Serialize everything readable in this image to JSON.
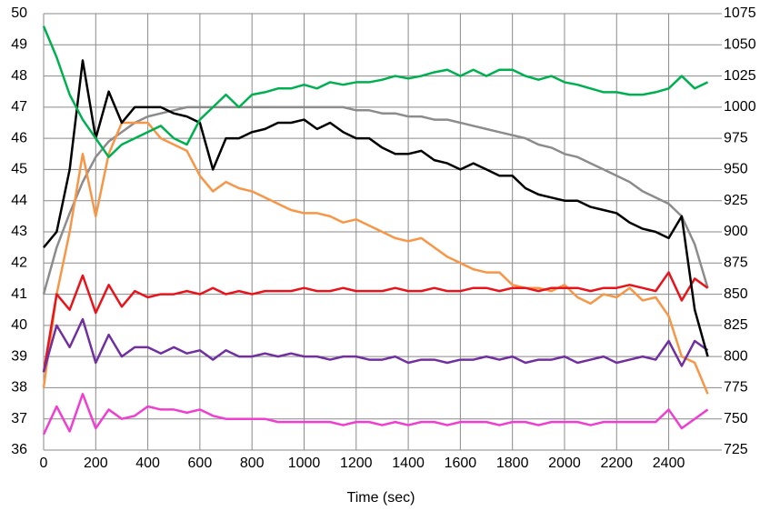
{
  "chart_data": {
    "type": "line",
    "x_label": "Time (sec)",
    "x": [
      0,
      50,
      100,
      150,
      200,
      250,
      300,
      350,
      400,
      450,
      500,
      550,
      600,
      650,
      700,
      750,
      800,
      850,
      900,
      950,
      1000,
      1050,
      1100,
      1150,
      1200,
      1250,
      1300,
      1350,
      1400,
      1450,
      1500,
      1550,
      1600,
      1650,
      1700,
      1750,
      1800,
      1850,
      1900,
      1950,
      2000,
      2050,
      2100,
      2150,
      2200,
      2250,
      2300,
      2350,
      2400,
      2450,
      2500,
      2550
    ],
    "xlim": [
      0,
      2590
    ],
    "xticks": [
      0,
      200,
      400,
      600,
      800,
      1000,
      1200,
      1400,
      1600,
      1800,
      2000,
      2200,
      2400
    ],
    "ylim": [
      36,
      50
    ],
    "yticks": [
      36,
      37,
      38,
      39,
      40,
      41,
      42,
      43,
      44,
      45,
      46,
      47,
      48,
      49,
      50
    ],
    "y2lim": [
      725,
      1075
    ],
    "y2ticks": [
      725,
      750,
      775,
      800,
      825,
      850,
      875,
      900,
      925,
      950,
      975,
      1000,
      1025,
      1050,
      1075
    ],
    "grid": true,
    "series": [
      {
        "color": "#8c8c8c",
        "values": [
          41,
          42.5,
          43.6,
          44.6,
          45.4,
          45.9,
          46.2,
          46.5,
          46.7,
          46.8,
          46.9,
          47,
          47,
          47,
          47,
          47,
          47,
          47,
          47,
          47,
          47,
          47,
          47,
          47,
          46.9,
          46.9,
          46.8,
          46.8,
          46.7,
          46.7,
          46.6,
          46.6,
          46.5,
          46.4,
          46.3,
          46.2,
          46.1,
          46,
          45.8,
          45.7,
          45.5,
          45.4,
          45.2,
          45,
          44.8,
          44.6,
          44.3,
          44.1,
          43.9,
          43.5,
          42.6,
          41.2
        ]
      },
      {
        "color": "#f79646",
        "values": [
          38,
          41,
          43,
          45.5,
          43.5,
          45.5,
          46.5,
          46.5,
          46.5,
          46,
          45.8,
          45.6,
          44.8,
          44.3,
          44.6,
          44.4,
          44.3,
          44.1,
          43.9,
          43.7,
          43.6,
          43.6,
          43.5,
          43.3,
          43.4,
          43.2,
          43,
          42.8,
          42.7,
          42.8,
          42.5,
          42.2,
          42,
          41.8,
          41.7,
          41.7,
          41.3,
          41.2,
          41.2,
          41.1,
          41.3,
          40.9,
          40.7,
          41,
          40.9,
          41.2,
          40.8,
          40.9,
          40.3,
          39,
          38.8,
          37.8
        ]
      },
      {
        "color": "#e8141b",
        "values": [
          38.5,
          41,
          40.5,
          41.6,
          40.4,
          41.3,
          40.6,
          41.1,
          40.9,
          41,
          41,
          41.1,
          41,
          41.2,
          41,
          41.1,
          41,
          41.1,
          41.1,
          41.1,
          41.2,
          41.1,
          41.1,
          41.2,
          41.1,
          41.1,
          41.1,
          41.2,
          41.1,
          41.1,
          41.2,
          41.1,
          41.1,
          41.2,
          41.2,
          41.1,
          41.2,
          41.2,
          41.1,
          41.2,
          41.2,
          41.2,
          41.1,
          41.2,
          41.2,
          41.3,
          41.2,
          41.1,
          41.7,
          40.8,
          41.5,
          41.2
        ]
      },
      {
        "color": "#7030a0",
        "values": [
          38.5,
          40,
          39.3,
          40.2,
          38.8,
          39.7,
          39,
          39.3,
          39.3,
          39.1,
          39.3,
          39.1,
          39.2,
          38.9,
          39.2,
          39,
          39,
          39.1,
          39,
          39.1,
          39,
          39,
          38.9,
          39,
          39,
          38.9,
          38.9,
          39,
          38.8,
          38.9,
          38.9,
          38.8,
          38.9,
          38.9,
          39,
          38.9,
          39,
          38.8,
          38.9,
          38.9,
          39,
          38.8,
          38.9,
          39,
          38.8,
          38.9,
          39,
          38.9,
          39.5,
          38.7,
          39.5,
          39.2
        ]
      },
      {
        "color": "#ee3fd0",
        "values": [
          36.5,
          37.4,
          36.6,
          37.8,
          36.7,
          37.3,
          37,
          37.1,
          37.4,
          37.3,
          37.3,
          37.2,
          37.3,
          37.1,
          37,
          37,
          37,
          37,
          36.9,
          36.9,
          36.9,
          36.9,
          36.9,
          36.8,
          36.9,
          36.9,
          36.8,
          36.9,
          36.8,
          36.9,
          36.9,
          36.8,
          36.9,
          36.9,
          36.9,
          36.8,
          36.9,
          36.9,
          36.8,
          36.9,
          36.9,
          36.9,
          36.8,
          36.9,
          36.9,
          36.9,
          36.9,
          36.9,
          37.3,
          36.7,
          37,
          37.3
        ]
      },
      {
        "color": "#000000",
        "values": [
          42.5,
          43,
          45,
          48.5,
          46,
          47.5,
          46.5,
          47,
          47,
          47,
          46.8,
          46.7,
          46.5,
          45,
          46,
          46,
          46.2,
          46.3,
          46.5,
          46.5,
          46.6,
          46.3,
          46.5,
          46.2,
          46,
          46,
          45.7,
          45.5,
          45.5,
          45.6,
          45.3,
          45.2,
          45,
          45.2,
          45,
          44.8,
          44.8,
          44.4,
          44.2,
          44.1,
          44,
          44,
          43.8,
          43.7,
          43.6,
          43.3,
          43.1,
          43,
          42.8,
          43.5,
          40.5,
          39
        ]
      },
      {
        "color": "#00b050",
        "axis": "y2",
        "values": [
          1065,
          1040,
          1010,
          990,
          975,
          960,
          970,
          975,
          980,
          985,
          975,
          970,
          990,
          1000,
          1010,
          1000,
          1010,
          1012,
          1015,
          1015,
          1018,
          1015,
          1020,
          1018,
          1020,
          1020,
          1022,
          1025,
          1023,
          1025,
          1028,
          1030,
          1025,
          1030,
          1025,
          1030,
          1030,
          1025,
          1022,
          1025,
          1020,
          1018,
          1015,
          1012,
          1012,
          1010,
          1010,
          1012,
          1015,
          1025,
          1015,
          1020
        ]
      }
    ]
  }
}
